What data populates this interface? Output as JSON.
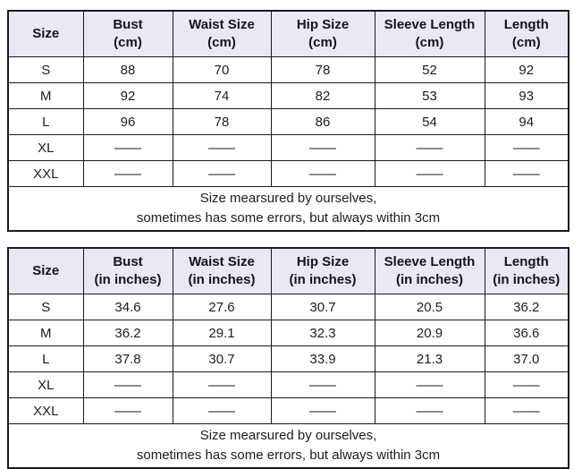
{
  "colors": {
    "header_background": "#e8e8f6",
    "border": "#1a1a1a",
    "text": "#1d1d1d",
    "page_background": "#ffffff"
  },
  "tables": [
    {
      "id": "size-chart-cm",
      "headers": [
        {
          "title": "Size",
          "unit": ""
        },
        {
          "title": "Bust",
          "unit": "(cm)"
        },
        {
          "title": "Waist Size",
          "unit": "(cm)"
        },
        {
          "title": "Hip Size",
          "unit": "(cm)"
        },
        {
          "title": "Sleeve Length",
          "unit": "(cm)"
        },
        {
          "title": "Length",
          "unit": "(cm)"
        }
      ],
      "rows": [
        [
          "S",
          "88",
          "70",
          "78",
          "52",
          "92"
        ],
        [
          "M",
          "92",
          "74",
          "82",
          "53",
          "93"
        ],
        [
          "L",
          "96",
          "78",
          "86",
          "54",
          "94"
        ],
        [
          "XL",
          "——",
          "——",
          "——",
          "——",
          "——"
        ],
        [
          "XXL",
          "——",
          "——",
          "——",
          "——",
          "——"
        ]
      ],
      "note": [
        "Size mearsured by ourselves,",
        "sometimes has some errors, but always within 3cm"
      ]
    },
    {
      "id": "size-chart-inches",
      "headers": [
        {
          "title": "Size",
          "unit": ""
        },
        {
          "title": "Bust",
          "unit": "(in inches)"
        },
        {
          "title": "Waist Size",
          "unit": "(in inches)"
        },
        {
          "title": "Hip Size",
          "unit": "(in inches)"
        },
        {
          "title": "Sleeve Length",
          "unit": "(in inches)"
        },
        {
          "title": "Length",
          "unit": "(in inches)"
        }
      ],
      "rows": [
        [
          "S",
          "34.6",
          "27.6",
          "30.7",
          "20.5",
          "36.2"
        ],
        [
          "M",
          "36.2",
          "29.1",
          "32.3",
          "20.9",
          "36.6"
        ],
        [
          "L",
          "37.8",
          "30.7",
          "33.9",
          "21.3",
          "37.0"
        ],
        [
          "XL",
          "——",
          "——",
          "——",
          "——",
          "——"
        ],
        [
          "XXL",
          "——",
          "——",
          "——",
          "——",
          "——"
        ]
      ],
      "note": [
        "Size mearsured by ourselves,",
        "sometimes has some errors, but always within 3cm"
      ]
    }
  ]
}
